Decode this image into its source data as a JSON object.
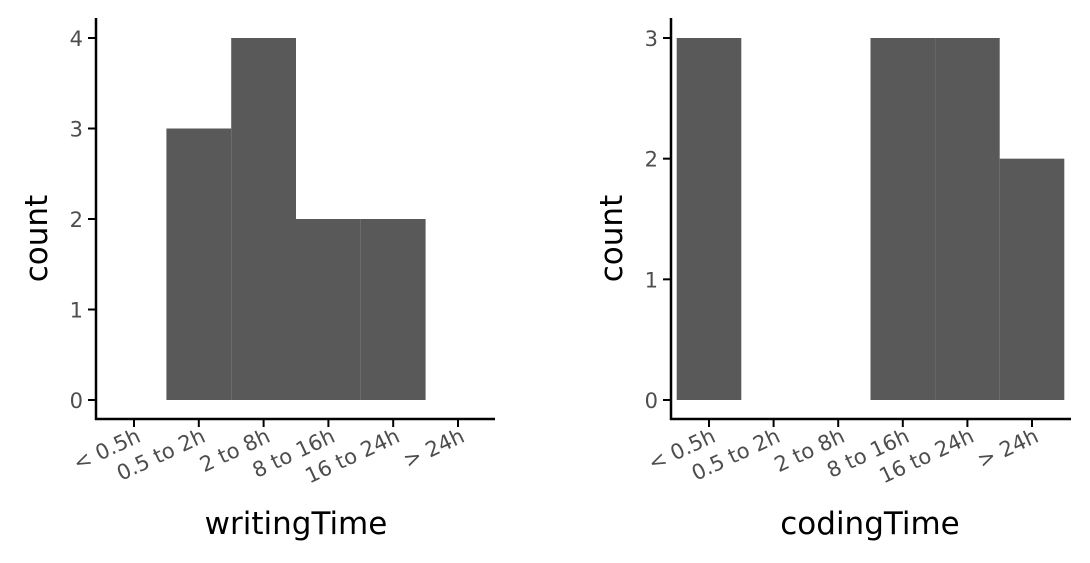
{
  "chart_data": [
    {
      "type": "bar",
      "title": "",
      "xlabel": "writingTime",
      "ylabel": "count",
      "categories": [
        "< 0.5h",
        "0.5 to 2h",
        "2 to 8h",
        "8 to 16h",
        "16 to 24h",
        "> 24h"
      ],
      "values": [
        0,
        3,
        4,
        2,
        2,
        0
      ],
      "ylim": [
        0,
        4
      ],
      "yticks": [
        0,
        1,
        2,
        3,
        4
      ],
      "grid": false,
      "bar_color": "#595959"
    },
    {
      "type": "bar",
      "title": "",
      "xlabel": "codingTime",
      "ylabel": "count",
      "categories": [
        "< 0.5h",
        "0.5 to 2h",
        "2 to 8h",
        "8 to 16h",
        "16 to 24h",
        "> 24h"
      ],
      "values": [
        3,
        0,
        0,
        3,
        3,
        2
      ],
      "ylim": [
        0,
        3
      ],
      "yticks": [
        0,
        1,
        2,
        3
      ],
      "grid": false,
      "bar_color": "#595959"
    }
  ]
}
